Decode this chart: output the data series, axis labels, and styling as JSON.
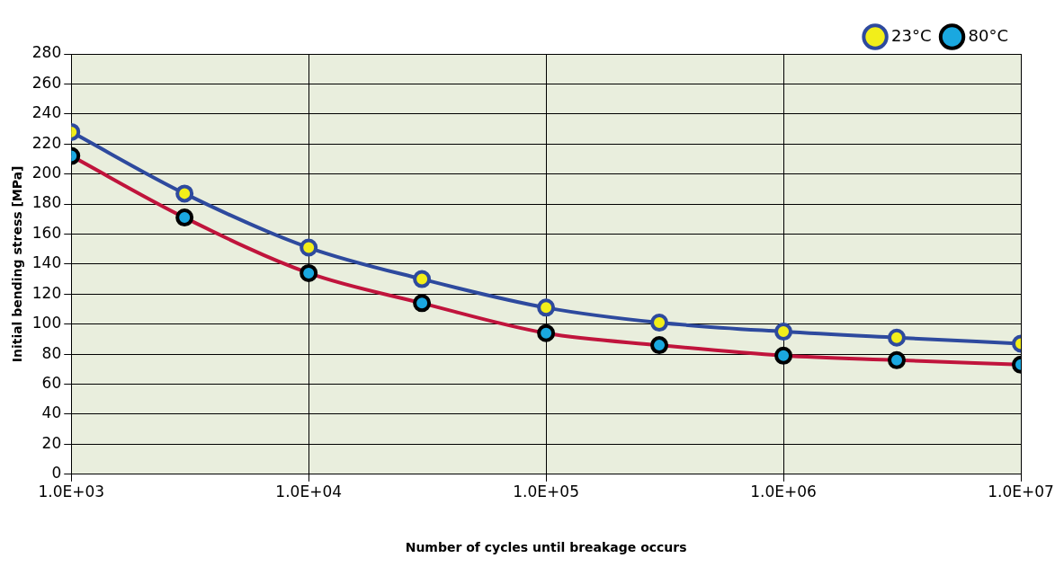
{
  "chart_data": {
    "type": "line",
    "xlabel": "Number of cycles until breakage occurs",
    "ylabel": "Initial bending stress [MPa]",
    "log": "x",
    "xlim": [
      1000,
      10000000
    ],
    "xticks": [
      {
        "value": 1000,
        "label": "1.0E+03"
      },
      {
        "value": 10000,
        "label": "1.0E+04"
      },
      {
        "value": 100000,
        "label": "1.0E+05"
      },
      {
        "value": 1000000,
        "label": "1.0E+06"
      },
      {
        "value": 10000000,
        "label": "1.0E+07"
      }
    ],
    "ylim": [
      0,
      280
    ],
    "yticks": [
      0,
      20,
      40,
      60,
      80,
      100,
      120,
      140,
      160,
      180,
      200,
      220,
      240,
      260,
      280
    ],
    "x": [
      1000,
      3000,
      10000,
      30000,
      100000,
      300000,
      1000000,
      3000000,
      10000000
    ],
    "series": [
      {
        "name": "23°C",
        "color": "#2e4a9e",
        "values": [
          228,
          187,
          151,
          130,
          111,
          101,
          95,
          91,
          87
        ]
      },
      {
        "name": "80°C",
        "color": "#c0143c",
        "values": [
          212,
          171,
          134,
          114,
          94,
          86,
          79,
          76,
          73
        ]
      }
    ],
    "grid": true,
    "legend": "top right",
    "marker": "circle"
  }
}
